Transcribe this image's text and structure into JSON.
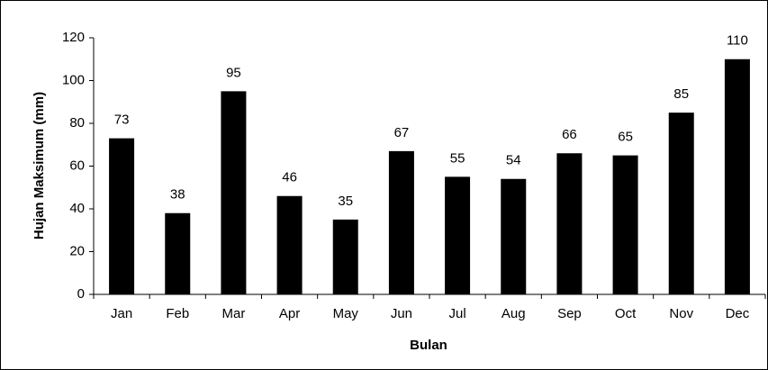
{
  "chart_data": {
    "type": "bar",
    "x_label": "Bulan",
    "y_label": "Hujan Maksimum (mm)",
    "categories": [
      "Jan",
      "Feb",
      "Mar",
      "Apr",
      "May",
      "Jun",
      "Jul",
      "Aug",
      "Sep",
      "Oct",
      "Nov",
      "Dec"
    ],
    "values": [
      73,
      38,
      95,
      46,
      35,
      67,
      55,
      54,
      66,
      65,
      85,
      110
    ],
    "color": "#000000",
    "ylim": [
      0,
      120
    ],
    "yticks": [
      0,
      20,
      40,
      60,
      80,
      100,
      120
    ],
    "grid": false
  }
}
